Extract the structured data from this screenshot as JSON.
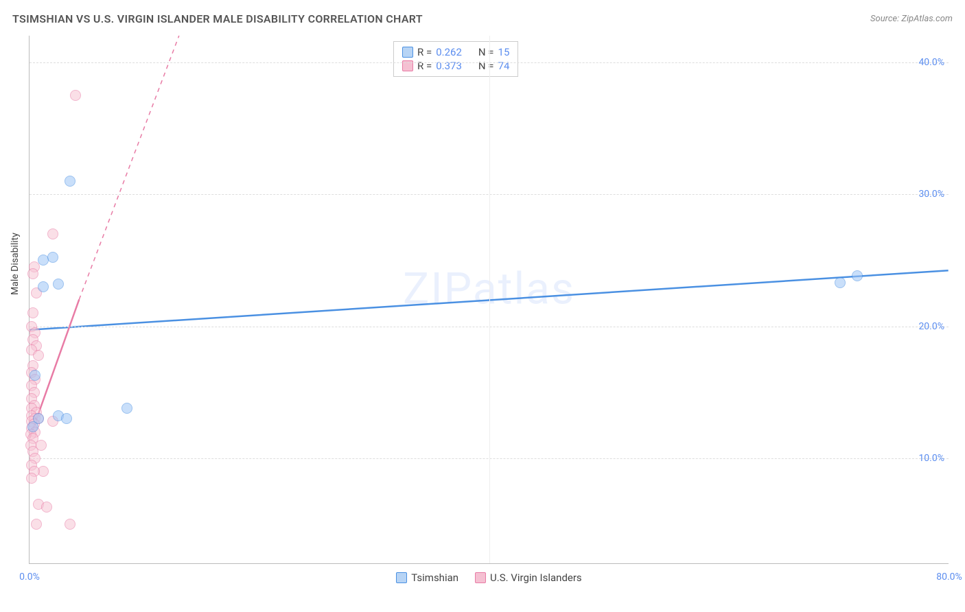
{
  "header": {
    "title": "TSIMSHIAN VS U.S. VIRGIN ISLANDER MALE DISABILITY CORRELATION CHART",
    "source": "Source: ZipAtlas.com"
  },
  "axes": {
    "ylabel": "Male Disability",
    "yticks": [
      {
        "pct": 10.0,
        "label": "10.0%"
      },
      {
        "pct": 20.0,
        "label": "20.0%"
      },
      {
        "pct": 30.0,
        "label": "30.0%"
      },
      {
        "pct": 40.0,
        "label": "40.0%"
      }
    ],
    "xticks": [
      {
        "pct": 0.0,
        "label": "0.0%"
      },
      {
        "pct": 80.0,
        "label": "80.0%"
      }
    ],
    "xlim": [
      0,
      80
    ],
    "ylim": [
      2,
      42
    ],
    "grid_color": "#dddddd"
  },
  "watermark": "ZIPatlas",
  "series": {
    "blue": {
      "name": "Tsimshian",
      "color_fill": "#9ec5f7",
      "color_stroke": "#4a90e2",
      "R": "0.262",
      "N": "15",
      "trend": {
        "x1": 0,
        "y1": 19.7,
        "x2": 80,
        "y2": 24.2,
        "dash": false
      },
      "points": [
        {
          "x": 0.5,
          "y": 16.3
        },
        {
          "x": 1.2,
          "y": 25.0
        },
        {
          "x": 2.0,
          "y": 25.2
        },
        {
          "x": 1.2,
          "y": 23.0
        },
        {
          "x": 2.5,
          "y": 23.2
        },
        {
          "x": 3.5,
          "y": 31.0
        },
        {
          "x": 0.8,
          "y": 13.0
        },
        {
          "x": 2.5,
          "y": 13.2
        },
        {
          "x": 3.2,
          "y": 13.0
        },
        {
          "x": 8.5,
          "y": 13.8
        },
        {
          "x": 0.3,
          "y": 12.4
        },
        {
          "x": 70.5,
          "y": 23.3
        },
        {
          "x": 72.0,
          "y": 23.8
        }
      ]
    },
    "pink": {
      "name": "U.S. Virgin Islanders",
      "color_fill": "#f7c5d5",
      "color_stroke": "#e87ba5",
      "R": "0.373",
      "N": "74",
      "trend": {
        "x1": 0,
        "y1": 11.5,
        "x2": 4.3,
        "y2": 22.0,
        "dash": false
      },
      "trend_ext": {
        "x1": 4.3,
        "y1": 22.0,
        "x2": 13.0,
        "y2": 42.0,
        "dash": true
      },
      "points": [
        {
          "x": 4.0,
          "y": 37.5
        },
        {
          "x": 2.0,
          "y": 27.0
        },
        {
          "x": 0.4,
          "y": 24.5
        },
        {
          "x": 0.3,
          "y": 24.0
        },
        {
          "x": 0.6,
          "y": 22.5
        },
        {
          "x": 0.3,
          "y": 21.0
        },
        {
          "x": 0.2,
          "y": 20.0
        },
        {
          "x": 0.5,
          "y": 19.5
        },
        {
          "x": 0.3,
          "y": 19.0
        },
        {
          "x": 0.6,
          "y": 18.5
        },
        {
          "x": 0.2,
          "y": 18.2
        },
        {
          "x": 0.8,
          "y": 17.8
        },
        {
          "x": 0.3,
          "y": 17.0
        },
        {
          "x": 0.2,
          "y": 16.5
        },
        {
          "x": 0.5,
          "y": 16.0
        },
        {
          "x": 0.2,
          "y": 15.5
        },
        {
          "x": 0.4,
          "y": 15.0
        },
        {
          "x": 0.2,
          "y": 14.5
        },
        {
          "x": 0.4,
          "y": 14.0
        },
        {
          "x": 0.2,
          "y": 13.8
        },
        {
          "x": 0.6,
          "y": 13.5
        },
        {
          "x": 0.2,
          "y": 13.2
        },
        {
          "x": 0.5,
          "y": 13.0
        },
        {
          "x": 0.8,
          "y": 13.0
        },
        {
          "x": 0.2,
          "y": 12.8
        },
        {
          "x": 0.4,
          "y": 12.6
        },
        {
          "x": 2.0,
          "y": 12.8
        },
        {
          "x": 0.2,
          "y": 12.3
        },
        {
          "x": 0.5,
          "y": 12.0
        },
        {
          "x": 0.1,
          "y": 11.8
        },
        {
          "x": 0.3,
          "y": 11.5
        },
        {
          "x": 0.1,
          "y": 11.0
        },
        {
          "x": 1.0,
          "y": 11.0
        },
        {
          "x": 0.3,
          "y": 10.5
        },
        {
          "x": 0.5,
          "y": 10.0
        },
        {
          "x": 0.2,
          "y": 9.5
        },
        {
          "x": 1.2,
          "y": 9.0
        },
        {
          "x": 0.4,
          "y": 9.0
        },
        {
          "x": 0.2,
          "y": 8.5
        },
        {
          "x": 0.8,
          "y": 6.5
        },
        {
          "x": 1.5,
          "y": 6.3
        },
        {
          "x": 0.6,
          "y": 5.0
        },
        {
          "x": 3.5,
          "y": 5.0
        }
      ]
    }
  },
  "legend": {
    "item1": "Tsimshian",
    "item2": "U.S. Virgin Islanders"
  },
  "stats_labels": {
    "R": "R =",
    "N": "N ="
  },
  "colors": {
    "axis_text": "#5b8def",
    "title_text": "#555555",
    "background": "#ffffff"
  }
}
